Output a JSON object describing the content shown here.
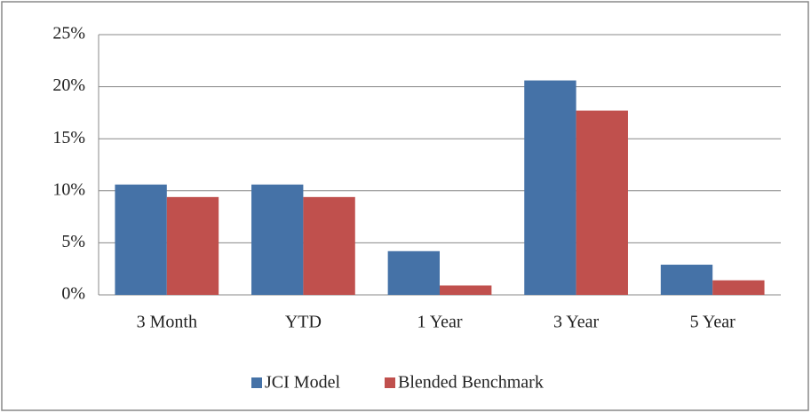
{
  "chart_data": {
    "type": "bar",
    "categories": [
      "3 Month",
      "YTD",
      "1 Year",
      "3 Year",
      "5 Year"
    ],
    "series": [
      {
        "name": "JCI Model",
        "color": "#4572a7",
        "values": [
          10.6,
          10.6,
          4.2,
          20.6,
          2.9
        ]
      },
      {
        "name": "Blended Benchmark",
        "color": "#c0504d",
        "values": [
          9.4,
          9.4,
          0.9,
          17.7,
          1.4
        ]
      }
    ],
    "ylim": [
      0,
      25
    ],
    "yticks": [
      {
        "value": 0,
        "label": "0%"
      },
      {
        "value": 5,
        "label": "5%"
      },
      {
        "value": 10,
        "label": "10%"
      },
      {
        "value": 15,
        "label": "15%"
      },
      {
        "value": 20,
        "label": "20%"
      },
      {
        "value": 25,
        "label": "25%"
      }
    ],
    "grid": true,
    "legend": "bottom"
  }
}
